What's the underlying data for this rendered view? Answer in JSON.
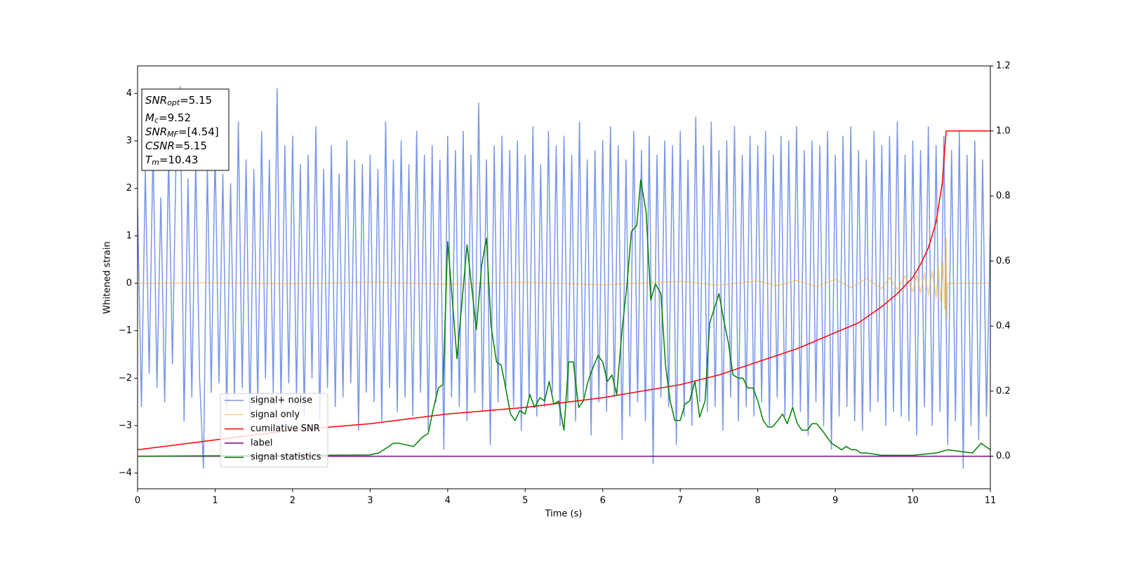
{
  "chart_data": {
    "type": "line",
    "xlabel": "Time (s)",
    "ylabel": "Whitened strain",
    "xlim": [
      0,
      11
    ],
    "xticks": [
      0,
      1,
      2,
      3,
      4,
      5,
      6,
      7,
      8,
      9,
      10,
      11
    ],
    "ylim": [
      -4.33,
      4.58
    ],
    "yticks": [
      {
        "value": -4,
        "label": "−4"
      },
      {
        "value": -3,
        "label": "−3"
      },
      {
        "value": -2,
        "label": "−2"
      },
      {
        "value": -1,
        "label": "−1"
      },
      0,
      1,
      2,
      3,
      4
    ],
    "y2lim": [
      -0.1,
      1.2
    ],
    "y2ticks": [
      {
        "value": 0,
        "label": "0.0"
      },
      {
        "value": 0.2,
        "label": "0.2"
      },
      {
        "value": 0.4,
        "label": "0.4"
      },
      {
        "value": 0.6,
        "label": "0.6"
      },
      {
        "value": 0.8,
        "label": "0.8"
      },
      {
        "value": 1.0,
        "label": "1.0"
      },
      {
        "value": 1.2,
        "label": "1.2"
      }
    ],
    "annotations": [
      {
        "main": "SNR",
        "sub": "opt",
        "rest": "=5.15"
      },
      {
        "main": "M",
        "sub": "c",
        "rest": "=9.52"
      },
      {
        "main": "SNR",
        "sub": "MF",
        "rest": "=[4.54]"
      },
      {
        "main": "CSNR",
        "rest": "=5.15"
      },
      {
        "main": "T",
        "sub": "m",
        "rest": "=10.43"
      }
    ],
    "series": [
      {
        "name": "signal+ noise",
        "color": "#4169e1",
        "alpha": 0.7,
        "x": [
          0,
          0.05,
          0.1,
          0.15,
          0.2,
          0.25,
          0.3,
          0.35,
          0.4,
          0.45,
          0.5,
          0.55,
          0.6,
          0.65,
          0.7,
          0.75,
          0.8,
          0.85,
          0.9,
          0.95,
          1,
          1.05,
          1.1,
          1.15,
          1.2,
          1.25,
          1.3,
          1.35,
          1.4,
          1.45,
          1.5,
          1.55,
          1.6,
          1.65,
          1.7,
          1.75,
          1.8,
          1.85,
          1.9,
          1.95,
          2,
          2.05,
          2.1,
          2.15,
          2.2,
          2.25,
          2.3,
          2.35,
          2.4,
          2.45,
          2.5,
          2.55,
          2.6,
          2.65,
          2.7,
          2.75,
          2.8,
          2.85,
          2.9,
          2.95,
          3,
          3.05,
          3.1,
          3.15,
          3.2,
          3.25,
          3.3,
          3.35,
          3.4,
          3.45,
          3.5,
          3.55,
          3.6,
          3.65,
          3.7,
          3.75,
          3.8,
          3.85,
          3.9,
          3.95,
          4,
          4.05,
          4.1,
          4.15,
          4.2,
          4.25,
          4.3,
          4.35,
          4.4,
          4.45,
          4.5,
          4.55,
          4.6,
          4.65,
          4.7,
          4.75,
          4.8,
          4.85,
          4.9,
          4.95,
          5,
          5.05,
          5.1,
          5.15,
          5.2,
          5.25,
          5.3,
          5.35,
          5.4,
          5.45,
          5.5,
          5.55,
          5.6,
          5.65,
          5.7,
          5.75,
          5.8,
          5.85,
          5.9,
          5.95,
          6,
          6.05,
          6.1,
          6.15,
          6.2,
          6.25,
          6.3,
          6.35,
          6.4,
          6.45,
          6.5,
          6.55,
          6.6,
          6.65,
          6.7,
          6.75,
          6.8,
          6.85,
          6.9,
          6.95,
          7,
          7.05,
          7.1,
          7.15,
          7.2,
          7.25,
          7.3,
          7.35,
          7.4,
          7.45,
          7.5,
          7.55,
          7.6,
          7.65,
          7.7,
          7.75,
          7.8,
          7.85,
          7.9,
          7.95,
          8,
          8.05,
          8.1,
          8.15,
          8.2,
          8.25,
          8.3,
          8.35,
          8.4,
          8.45,
          8.5,
          8.55,
          8.6,
          8.65,
          8.7,
          8.75,
          8.8,
          8.85,
          8.9,
          8.95,
          9,
          9.05,
          9.1,
          9.15,
          9.2,
          9.25,
          9.3,
          9.35,
          9.4,
          9.45,
          9.5,
          9.55,
          9.6,
          9.65,
          9.7,
          9.75,
          9.8,
          9.85,
          9.9,
          9.95,
          10,
          10.05,
          10.1,
          10.15,
          10.2,
          10.25,
          10.3,
          10.35,
          10.4,
          10.45,
          10.5,
          10.55,
          10.6,
          10.65,
          10.7,
          10.75,
          10.8,
          10.85,
          10.9,
          10.95,
          11
        ],
        "values": [
          1.6,
          -2.6,
          2.4,
          -1.9,
          2.9,
          -2.2,
          1.8,
          -2.5,
          2.7,
          -1.7,
          3.0,
          4.15,
          -2.9,
          2.2,
          -2.4,
          2.6,
          -2.0,
          -3.9,
          2.5,
          -2.3,
          2.8,
          -2.1,
          2.3,
          -2.7,
          2.1,
          -2.4,
          3.4,
          -2.2,
          2.6,
          -2.9,
          2.4,
          -2.5,
          3.2,
          -2.0,
          2.6,
          -2.3,
          4.1,
          -2.6,
          2.9,
          -2.1,
          3.1,
          -2.4,
          2.5,
          -2.8,
          2.7,
          -2.0,
          3.3,
          -2.9,
          2.4,
          -2.2,
          2.9,
          -2.6,
          2.3,
          -2.4,
          3.0,
          -2.1,
          2.6,
          -3.1,
          2.5,
          -2.3,
          2.7,
          -2.5,
          2.4,
          -2.9,
          3.4,
          -2.2,
          2.6,
          -2.7,
          3.0,
          -2.4,
          2.5,
          -2.8,
          3.2,
          -2.3,
          2.7,
          -3.1,
          2.9,
          -2.5,
          2.6,
          -3.5,
          3.1,
          -2.4,
          2.8,
          -2.6,
          3.2,
          -2.9,
          2.7,
          -2.3,
          3.8,
          -2.7,
          2.6,
          -3.4,
          2.9,
          -2.5,
          3.1,
          -2.2,
          2.8,
          -2.6,
          3.0,
          -3.1,
          2.7,
          -2.4,
          3.3,
          -2.8,
          2.5,
          -2.6,
          3.2,
          -2.3,
          2.9,
          -3.0,
          3.1,
          -2.5,
          2.7,
          -2.9,
          3.4,
          -2.4,
          2.6,
          -3.2,
          2.8,
          -2.5,
          3.0,
          -2.7,
          3.3,
          -2.4,
          2.9,
          -3.3,
          2.6,
          -2.8,
          3.2,
          -2.5,
          2.8,
          -2.9,
          3.1,
          -3.8,
          2.7,
          -2.4,
          3.0,
          -2.6,
          2.9,
          -3.4,
          3.2,
          -2.8,
          2.6,
          -3.0,
          3.5,
          -2.5,
          2.9,
          -2.7,
          3.4,
          -2.6,
          2.8,
          -3.1,
          3.0,
          -2.4,
          3.3,
          -2.9,
          2.7,
          -2.6,
          3.1,
          -2.8,
          2.9,
          -2.5,
          3.2,
          -3.0,
          2.7,
          -2.4,
          3.1,
          -2.8,
          3.0,
          -2.6,
          3.3,
          -2.7,
          2.8,
          -3.2,
          3.0,
          -2.5,
          2.9,
          -3.0,
          3.2,
          -3.5,
          2.7,
          -2.8,
          3.1,
          -2.6,
          3.3,
          -2.9,
          2.8,
          -3.1,
          2.6,
          -2.7,
          3.2,
          -2.5,
          2.9,
          -3.0,
          3.1,
          -2.7,
          3.4,
          -2.8,
          2.7,
          -2.9,
          3.0,
          -3.2,
          2.8,
          -2.6,
          3.3,
          -3.0,
          2.9,
          -2.7,
          3.1,
          -3.4,
          2.8,
          -2.9,
          3.2,
          -3.9,
          2.7,
          -3.0,
          3.0,
          -3.3,
          2.6,
          -2.8,
          1.2
        ]
      },
      {
        "name": "signal only",
        "color": "#ffa500",
        "alpha": 0.5,
        "x": [
          0,
          1,
          2,
          3,
          4,
          5,
          6,
          7,
          7.5,
          8,
          8.25,
          8.5,
          8.75,
          9,
          9.2,
          9.4,
          9.6,
          9.7,
          9.8,
          9.9,
          10,
          10.05,
          10.1,
          10.15,
          10.2,
          10.25,
          10.3,
          10.33,
          10.36,
          10.39,
          10.41,
          10.43,
          10.44,
          10.45,
          11
        ],
        "values": [
          0,
          0.01,
          -0.01,
          0.02,
          -0.02,
          0.02,
          -0.03,
          0.04,
          -0.04,
          0.05,
          -0.05,
          0.06,
          -0.07,
          0.08,
          -0.09,
          0.1,
          -0.11,
          0.12,
          -0.13,
          0.15,
          -0.17,
          0.18,
          -0.2,
          0.22,
          -0.25,
          0.27,
          -0.3,
          0.33,
          -0.38,
          0.45,
          -0.55,
          0.95,
          -0.75,
          0,
          0
        ]
      },
      {
        "name": "cumilative SNR",
        "color": "#ff0000",
        "axis": "y2",
        "x": [
          0,
          1,
          2,
          3,
          4,
          5,
          6,
          7,
          7.5,
          8,
          8.5,
          9,
          9.3,
          9.6,
          9.8,
          10,
          10.1,
          10.2,
          10.3,
          10.38,
          10.43,
          11
        ],
        "values": [
          0.02,
          0.05,
          0.08,
          0.1,
          0.13,
          0.15,
          0.18,
          0.22,
          0.25,
          0.29,
          0.33,
          0.38,
          0.41,
          0.46,
          0.5,
          0.55,
          0.59,
          0.64,
          0.72,
          0.84,
          1.0,
          1.0
        ]
      },
      {
        "name": "label",
        "color": "#800080",
        "axis": "y2",
        "x": [
          0,
          11
        ],
        "values": [
          0,
          0
        ]
      },
      {
        "name": "signal statistics",
        "color": "#008000",
        "axis": "y2",
        "x": [
          0,
          2.99,
          3.11,
          3.24,
          3.3,
          3.37,
          3.56,
          3.68,
          3.75,
          3.81,
          3.88,
          3.94,
          4.0,
          4.12,
          4.25,
          4.37,
          4.44,
          4.5,
          4.56,
          4.63,
          4.69,
          4.74,
          4.81,
          4.87,
          4.93,
          5.0,
          5.06,
          5.12,
          5.19,
          5.25,
          5.31,
          5.37,
          5.43,
          5.5,
          5.56,
          5.62,
          5.69,
          5.75,
          5.81,
          5.87,
          5.94,
          6.0,
          6.06,
          6.12,
          6.18,
          6.25,
          6.31,
          6.37,
          6.44,
          6.49,
          6.56,
          6.62,
          6.68,
          6.75,
          6.81,
          6.87,
          6.93,
          7.0,
          7.06,
          7.12,
          7.19,
          7.25,
          7.32,
          7.38,
          7.5,
          7.56,
          7.62,
          7.68,
          7.75,
          7.81,
          7.87,
          7.94,
          8.0,
          8.07,
          8.13,
          8.19,
          8.26,
          8.32,
          8.38,
          8.45,
          8.51,
          8.57,
          8.64,
          8.7,
          8.76,
          8.83,
          8.89,
          8.95,
          9.02,
          9.08,
          9.14,
          9.21,
          9.27,
          9.33,
          9.4,
          9.6,
          10.0,
          10.3,
          10.45,
          10.77,
          10.88,
          10.94,
          11
        ],
        "values": [
          0,
          0.004,
          0.01,
          0.03,
          0.04,
          0.04,
          0.03,
          0.06,
          0.07,
          0.14,
          0.21,
          0.22,
          0.66,
          0.3,
          0.65,
          0.39,
          0.59,
          0.67,
          0.4,
          0.29,
          0.28,
          0.22,
          0.13,
          0.11,
          0.14,
          0.13,
          0.19,
          0.15,
          0.18,
          0.17,
          0.23,
          0.16,
          0.17,
          0.08,
          0.29,
          0.29,
          0.15,
          0.17,
          0.23,
          0.27,
          0.31,
          0.29,
          0.23,
          0.25,
          0.19,
          0.39,
          0.52,
          0.69,
          0.71,
          0.85,
          0.75,
          0.48,
          0.53,
          0.5,
          0.28,
          0.17,
          0.11,
          0.11,
          0.16,
          0.17,
          0.23,
          0.12,
          0.17,
          0.41,
          0.5,
          0.42,
          0.35,
          0.25,
          0.24,
          0.24,
          0.21,
          0.21,
          0.17,
          0.11,
          0.09,
          0.09,
          0.11,
          0.13,
          0.1,
          0.15,
          0.1,
          0.08,
          0.08,
          0.1,
          0.1,
          0.08,
          0.06,
          0.04,
          0.03,
          0.02,
          0.03,
          0.02,
          0.02,
          0.01,
          0.01,
          0.003,
          0.003,
          0.01,
          0.02,
          0.01,
          0.04,
          0.03,
          0.02
        ]
      }
    ]
  }
}
